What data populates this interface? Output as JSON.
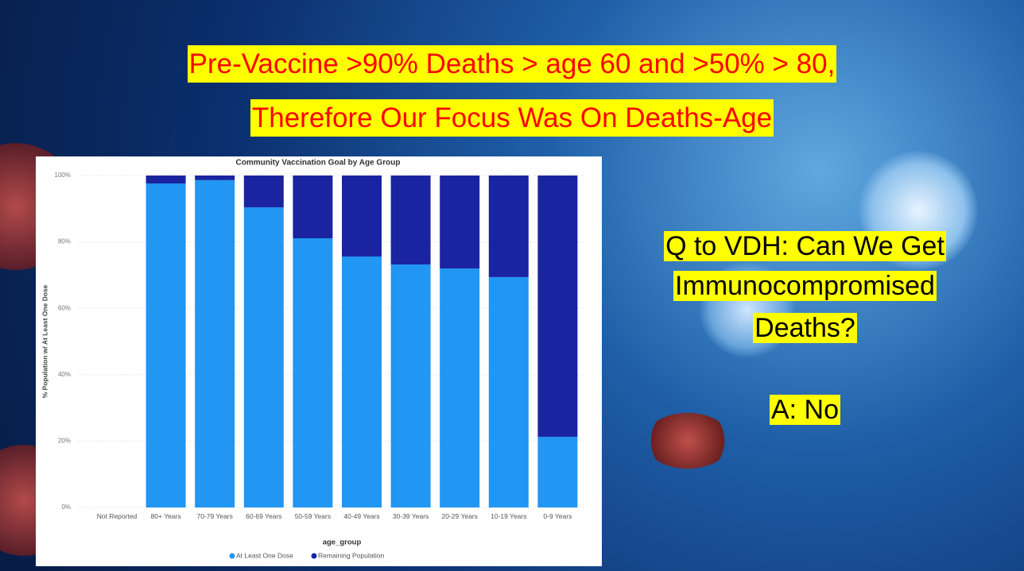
{
  "slide": {
    "title": [
      "Pre-Vaccine >90% Deaths > age 60 and >50% > 80,",
      "Therefore Our Focus Was On Deaths-Age"
    ],
    "question": [
      "Q to VDH: Can We Get",
      "Immunocompromised",
      "Deaths?"
    ],
    "answer": "A: No"
  },
  "chart_data": {
    "type": "stacked-bar",
    "title": "Community Vaccination Goal by Age Group",
    "x_label": "age_group",
    "y_label": "% Population w/ At Least One Dose",
    "categories": [
      "Not Reported",
      "80+ Years",
      "70-79 Years",
      "60-69 Years",
      "50-59 Years",
      "40-49 Years",
      "30-39 Years",
      "20-29 Years",
      "10-19 Years",
      "0-9 Years"
    ],
    "series": [
      {
        "name": "At Least One Dose",
        "color": "#2196f3",
        "values": [
          null,
          97.6,
          98.6,
          90.4,
          81.1,
          75.6,
          73.2,
          72.0,
          69.4,
          21.3
        ]
      },
      {
        "name": "Remaining Population",
        "color": "#1a24a0",
        "values": [
          null,
          2.4,
          1.4,
          9.6,
          18.9,
          24.4,
          26.8,
          28.0,
          30.6,
          78.7
        ]
      }
    ],
    "ylim": [
      0,
      100
    ],
    "yticks": [
      {
        "value": 0,
        "label": "0%"
      },
      {
        "value": 20,
        "label": "20%"
      },
      {
        "value": 40,
        "label": "40%"
      },
      {
        "value": 60,
        "label": "60%"
      },
      {
        "value": 80,
        "label": "80%"
      },
      {
        "value": 100,
        "label": "100%"
      }
    ],
    "grid": true,
    "legend": "bottom"
  }
}
